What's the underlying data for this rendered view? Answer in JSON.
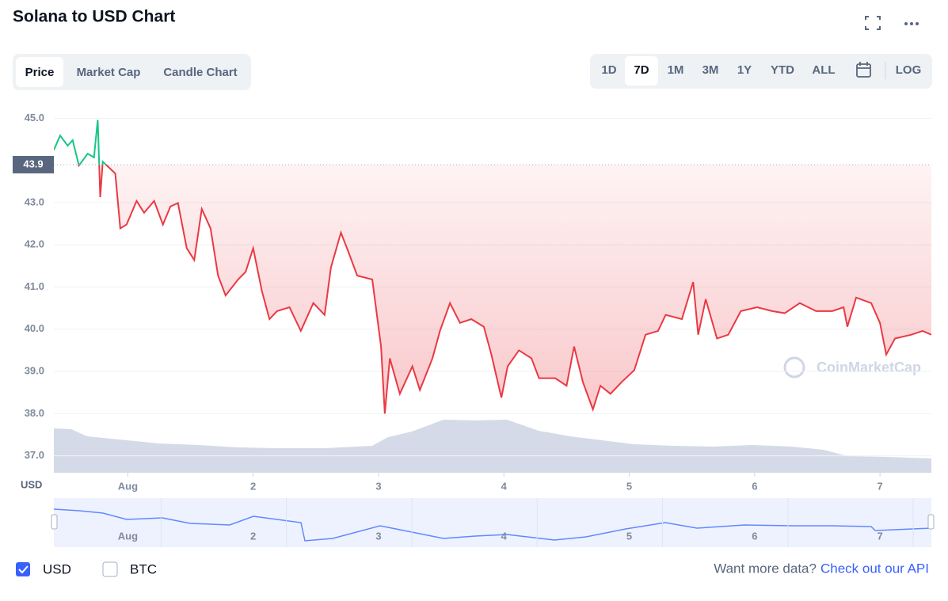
{
  "header": {
    "title": "Solana to USD Chart"
  },
  "tabs": [
    "Price",
    "Market Cap",
    "Candle Chart"
  ],
  "ranges": [
    "1D",
    "7D",
    "1M",
    "3M",
    "1Y",
    "YTD",
    "ALL",
    "LOG"
  ],
  "currency_toggles": [
    "USD",
    "BTC"
  ],
  "footer": {
    "text": "Want more data?",
    "link": "Check out our API"
  },
  "watermark": "CoinMarketCap",
  "chart_data": {
    "type": "line",
    "ylabel": "USD",
    "current_price": 43.9,
    "up_color": "#16c784",
    "down_color": "#ea3943",
    "grid": true,
    "xlim": [
      0.41,
      7.41
    ],
    "xticks": [
      {
        "value": 1,
        "label": "Aug"
      },
      2,
      3,
      4,
      5,
      6,
      7
    ],
    "ylim": [
      36.6,
      45.4
    ],
    "yticks": [
      {
        "value": 37,
        "label": "37.0"
      },
      {
        "value": 38,
        "label": "38.0"
      },
      {
        "value": 39,
        "label": "39.0"
      },
      {
        "value": 40,
        "label": "40.0"
      },
      {
        "value": 41,
        "label": "41.0"
      },
      {
        "value": 42,
        "label": "42.0"
      },
      {
        "value": 43,
        "label": "43.0"
      },
      {
        "value": 45,
        "label": "45.0"
      }
    ],
    "x": [
      0.41,
      0.46,
      0.52,
      0.56,
      0.61,
      0.68,
      0.73,
      0.76,
      0.78,
      0.8,
      0.9,
      0.94,
      0.99,
      1.07,
      1.13,
      1.21,
      1.28,
      1.34,
      1.4,
      1.47,
      1.53,
      1.59,
      1.66,
      1.72,
      1.78,
      1.88,
      1.94,
      2.0,
      2.07,
      2.13,
      2.19,
      2.29,
      2.38,
      2.48,
      2.57,
      2.62,
      2.7,
      2.76,
      2.83,
      2.95,
      3.02,
      3.05,
      3.09,
      3.17,
      3.27,
      3.33,
      3.43,
      3.49,
      3.57,
      3.65,
      3.74,
      3.84,
      3.9,
      3.98,
      4.03,
      4.12,
      4.22,
      4.28,
      4.41,
      4.5,
      4.56,
      4.63,
      4.71,
      4.77,
      4.85,
      4.94,
      5.04,
      5.13,
      5.23,
      5.29,
      5.42,
      5.51,
      5.55,
      5.61,
      5.7,
      5.79,
      5.89,
      6.02,
      6.14,
      6.24,
      6.36,
      6.49,
      6.62,
      6.71,
      6.74,
      6.81,
      6.93,
      7.0,
      7.05,
      7.12,
      7.25,
      7.34,
      7.41
    ],
    "series": [
      {
        "name": "USD",
        "values": [
          44.25,
          44.59,
          44.35,
          44.48,
          43.88,
          44.16,
          44.07,
          44.96,
          43.13,
          43.97,
          43.69,
          42.39,
          42.48,
          43.04,
          42.76,
          43.04,
          42.48,
          42.91,
          42.99,
          41.92,
          41.64,
          42.85,
          42.39,
          41.27,
          40.8,
          41.18,
          41.36,
          41.92,
          40.9,
          40.24,
          40.43,
          40.52,
          39.96,
          40.62,
          40.34,
          41.46,
          42.29,
          41.83,
          41.27,
          41.18,
          39.59,
          38.0,
          39.31,
          38.47,
          39.12,
          38.56,
          39.31,
          39.96,
          40.62,
          40.15,
          40.24,
          40.06,
          39.4,
          38.38,
          39.12,
          39.5,
          39.31,
          38.84,
          38.84,
          38.66,
          39.59,
          38.75,
          38.1,
          38.66,
          38.47,
          38.75,
          39.03,
          39.87,
          39.96,
          40.34,
          40.24,
          41.12,
          39.87,
          40.71,
          39.78,
          39.87,
          40.43,
          40.52,
          40.43,
          40.38,
          40.62,
          40.43,
          40.43,
          40.52,
          40.06,
          40.75,
          40.62,
          40.15,
          39.4,
          39.78,
          39.87,
          39.96,
          39.87
        ]
      }
    ]
  }
}
